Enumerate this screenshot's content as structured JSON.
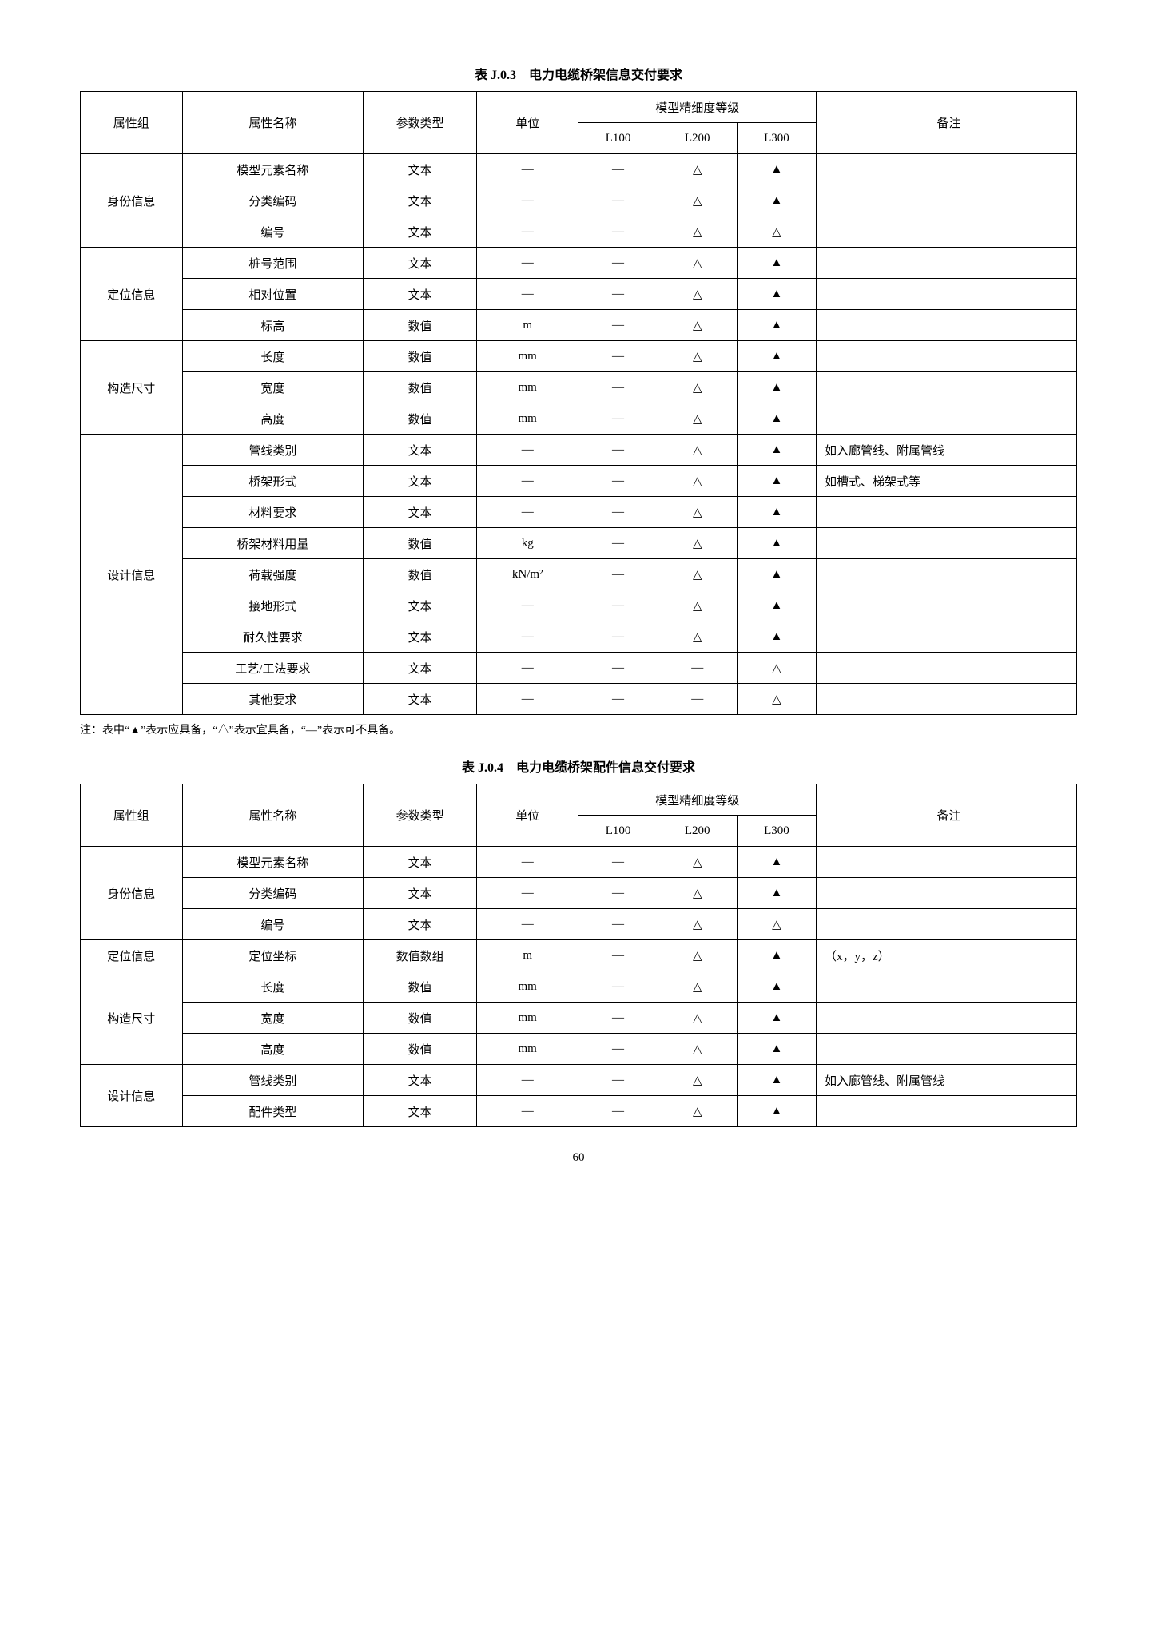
{
  "page_number": "60",
  "symbols": {
    "dash": "—",
    "hollow": "△",
    "solid": "▲"
  },
  "headers": {
    "group": "属性组",
    "name": "属性名称",
    "ptype": "参数类型",
    "unit": "单位",
    "level_group": "模型精细度等级",
    "L100": "L100",
    "L200": "L200",
    "L300": "L300",
    "remark": "备注"
  },
  "note": "注：表中“▲”表示应具备，“△”表示宜具备，“—”表示可不具备。",
  "table1": {
    "title": "表 J.0.3　电力电缆桥架信息交付要求",
    "groups": [
      {
        "label": "身份信息",
        "rows": [
          {
            "name": "模型元素名称",
            "ptype": "文本",
            "unit": "—",
            "L100": "—",
            "L200": "△",
            "L300": "▲",
            "remark": ""
          },
          {
            "name": "分类编码",
            "ptype": "文本",
            "unit": "—",
            "L100": "—",
            "L200": "△",
            "L300": "▲",
            "remark": ""
          },
          {
            "name": "编号",
            "ptype": "文本",
            "unit": "—",
            "L100": "—",
            "L200": "△",
            "L300": "△",
            "remark": ""
          }
        ]
      },
      {
        "label": "定位信息",
        "rows": [
          {
            "name": "桩号范围",
            "ptype": "文本",
            "unit": "—",
            "L100": "—",
            "L200": "△",
            "L300": "▲",
            "remark": ""
          },
          {
            "name": "相对位置",
            "ptype": "文本",
            "unit": "—",
            "L100": "—",
            "L200": "△",
            "L300": "▲",
            "remark": ""
          },
          {
            "name": "标高",
            "ptype": "数值",
            "unit": "m",
            "L100": "—",
            "L200": "△",
            "L300": "▲",
            "remark": ""
          }
        ]
      },
      {
        "label": "构造尺寸",
        "rows": [
          {
            "name": "长度",
            "ptype": "数值",
            "unit": "mm",
            "L100": "—",
            "L200": "△",
            "L300": "▲",
            "remark": ""
          },
          {
            "name": "宽度",
            "ptype": "数值",
            "unit": "mm",
            "L100": "—",
            "L200": "△",
            "L300": "▲",
            "remark": ""
          },
          {
            "name": "高度",
            "ptype": "数值",
            "unit": "mm",
            "L100": "—",
            "L200": "△",
            "L300": "▲",
            "remark": ""
          }
        ]
      },
      {
        "label": "设计信息",
        "rows": [
          {
            "name": "管线类别",
            "ptype": "文本",
            "unit": "—",
            "L100": "—",
            "L200": "△",
            "L300": "▲",
            "remark": "如入廊管线、附属管线"
          },
          {
            "name": "桥架形式",
            "ptype": "文本",
            "unit": "—",
            "L100": "—",
            "L200": "△",
            "L300": "▲",
            "remark": "如槽式、梯架式等"
          },
          {
            "name": "材料要求",
            "ptype": "文本",
            "unit": "—",
            "L100": "—",
            "L200": "△",
            "L300": "▲",
            "remark": ""
          },
          {
            "name": "桥架材料用量",
            "ptype": "数值",
            "unit": "kg",
            "L100": "—",
            "L200": "△",
            "L300": "▲",
            "remark": ""
          },
          {
            "name": "荷载强度",
            "ptype": "数值",
            "unit": "kN/m²",
            "L100": "—",
            "L200": "△",
            "L300": "▲",
            "remark": ""
          },
          {
            "name": "接地形式",
            "ptype": "文本",
            "unit": "—",
            "L100": "—",
            "L200": "△",
            "L300": "▲",
            "remark": ""
          },
          {
            "name": "耐久性要求",
            "ptype": "文本",
            "unit": "—",
            "L100": "—",
            "L200": "△",
            "L300": "▲",
            "remark": ""
          },
          {
            "name": "工艺/工法要求",
            "ptype": "文本",
            "unit": "—",
            "L100": "—",
            "L200": "—",
            "L300": "△",
            "remark": ""
          },
          {
            "name": "其他要求",
            "ptype": "文本",
            "unit": "—",
            "L100": "—",
            "L200": "—",
            "L300": "△",
            "remark": ""
          }
        ]
      }
    ]
  },
  "table2": {
    "title": "表 J.0.4　电力电缆桥架配件信息交付要求",
    "groups": [
      {
        "label": "身份信息",
        "rows": [
          {
            "name": "模型元素名称",
            "ptype": "文本",
            "unit": "—",
            "L100": "—",
            "L200": "△",
            "L300": "▲",
            "remark": ""
          },
          {
            "name": "分类编码",
            "ptype": "文本",
            "unit": "—",
            "L100": "—",
            "L200": "△",
            "L300": "▲",
            "remark": ""
          },
          {
            "name": "编号",
            "ptype": "文本",
            "unit": "—",
            "L100": "—",
            "L200": "△",
            "L300": "△",
            "remark": ""
          }
        ]
      },
      {
        "label": "定位信息",
        "rows": [
          {
            "name": "定位坐标",
            "ptype": "数值数组",
            "unit": "m",
            "L100": "—",
            "L200": "△",
            "L300": "▲",
            "remark": "（x，y，z）"
          }
        ]
      },
      {
        "label": "构造尺寸",
        "rows": [
          {
            "name": "长度",
            "ptype": "数值",
            "unit": "mm",
            "L100": "—",
            "L200": "△",
            "L300": "▲",
            "remark": ""
          },
          {
            "name": "宽度",
            "ptype": "数值",
            "unit": "mm",
            "L100": "—",
            "L200": "△",
            "L300": "▲",
            "remark": ""
          },
          {
            "name": "高度",
            "ptype": "数值",
            "unit": "mm",
            "L100": "—",
            "L200": "△",
            "L300": "▲",
            "remark": ""
          }
        ]
      },
      {
        "label": "设计信息",
        "rows": [
          {
            "name": "管线类别",
            "ptype": "文本",
            "unit": "—",
            "L100": "—",
            "L200": "△",
            "L300": "▲",
            "remark": "如入廊管线、附属管线"
          },
          {
            "name": "配件类型",
            "ptype": "文本",
            "unit": "—",
            "L100": "—",
            "L200": "△",
            "L300": "▲",
            "remark": ""
          }
        ]
      }
    ]
  }
}
